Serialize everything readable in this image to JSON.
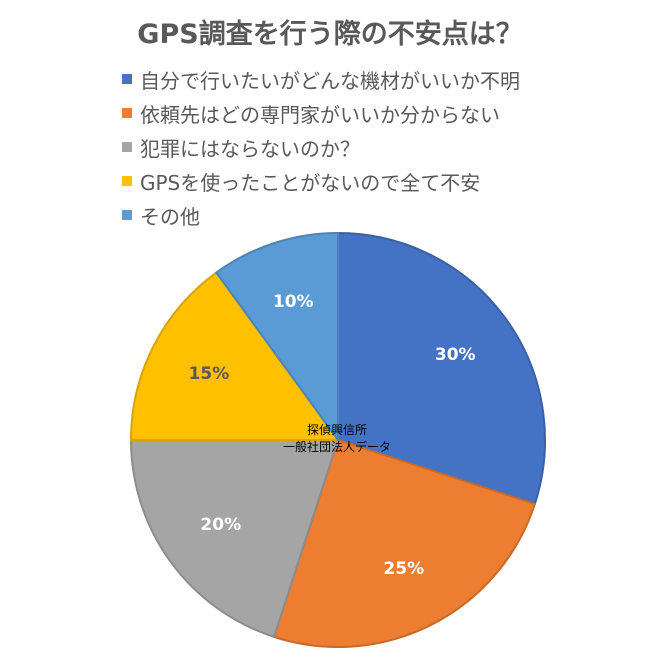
{
  "chart_data": {
    "type": "pie",
    "title": "GPS調査を行う際の不安点は？",
    "legend_position": "top",
    "slices": [
      {
        "label": "自分で行いたいがどんな機材がいいか不明",
        "value": 30,
        "display": "30%",
        "color": "#4472C4"
      },
      {
        "label": "依頼先はどの専門家がいいか分からない",
        "value": 25,
        "display": "25%",
        "color": "#ED7D31"
      },
      {
        "label": "犯罪にはならないのか？",
        "value": 20,
        "display": "20%",
        "color": "#A5A5A5"
      },
      {
        "label": "GPSを使ったことがないので全て不安",
        "value": 15,
        "display": "15%",
        "color": "#FFC000"
      },
      {
        "label": "その他",
        "value": 10,
        "display": "10%",
        "color": "#5B9BD5"
      }
    ],
    "annotation": {
      "line1": "探偵興信所",
      "line2": "一般社団法人データ"
    }
  }
}
